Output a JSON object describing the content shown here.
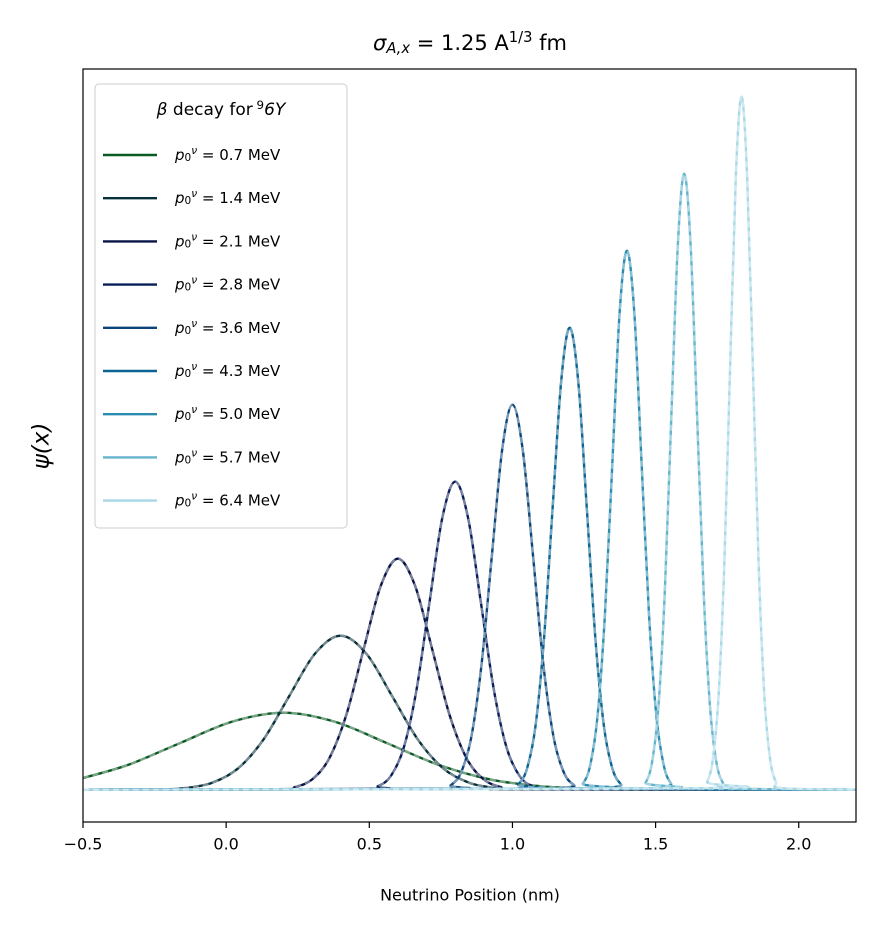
{
  "chart_data": {
    "type": "line",
    "title": "σA,x = 1.25 A1/3 fm",
    "xlabel": "Neutrino Position (nm)",
    "ylabel": "ψ(x)",
    "legend_title": "β decay for 96Y",
    "legend": "upper left",
    "dashed_overlay": true,
    "xlim": [
      -0.5,
      2.2
    ],
    "ylim": [
      -0.42,
      9.36
    ],
    "xticks": [
      {
        "value": -0.5,
        "label": "−0.5"
      },
      {
        "value": 0,
        "label": "0.0"
      },
      {
        "value": 0.5,
        "label": "0.5"
      },
      {
        "value": 1,
        "label": "1.0"
      },
      {
        "value": 1.5,
        "label": "1.5"
      },
      {
        "value": 2,
        "label": "2.0"
      }
    ],
    "series": [
      {
        "name": "p0ν = 0.7 MeV",
        "color": "#0b5a24",
        "x": [
          -0.5,
          -0.34,
          -0.16,
          0.02,
          0.2,
          0.38,
          0.56,
          0.74,
          0.92,
          1.1,
          1.28,
          1.46,
          2.2
        ],
        "values": [
          0.151,
          0.325,
          0.607,
          0.882,
          1,
          0.882,
          0.607,
          0.325,
          0.135,
          0.044,
          0.011,
          0.002,
          0
        ]
      },
      {
        "name": "p0ν = 1.4 MeV",
        "color": "#08303a",
        "x": [
          -0.5,
          -0.23,
          -0.14,
          -0.05,
          0.04,
          0.13,
          0.22,
          0.31,
          0.4,
          0.49,
          0.58,
          0.67,
          0.76,
          0.85,
          0.94,
          1.03,
          2.2
        ],
        "values": [
          0,
          0.0044,
          0.0222,
          0.0879,
          0.2706,
          0.6494,
          1.2131,
          1.765,
          2,
          1.765,
          1.2131,
          0.6494,
          0.2706,
          0.0879,
          0.0222,
          0.0044,
          0
        ]
      },
      {
        "name": "p0ν = 2.1 MeV",
        "color": "#081448",
        "x": [
          -0.5,
          0.18,
          0.24,
          0.3,
          0.36,
          0.42,
          0.48,
          0.54,
          0.6,
          0.66,
          0.72,
          0.78,
          0.84,
          0.9,
          0.96,
          1.02,
          2.2
        ],
        "values": [
          0,
          0.0066,
          0.0333,
          0.1318,
          0.406,
          0.9741,
          1.8196,
          2.6475,
          3,
          2.6475,
          1.8196,
          0.9741,
          0.406,
          0.1318,
          0.0333,
          0.0066,
          0
        ]
      },
      {
        "name": "p0ν = 2.8 MeV",
        "color": "#081d58",
        "x": [
          -0.5,
          0.485,
          0.53,
          0.575,
          0.62,
          0.665,
          0.71,
          0.755,
          0.8,
          0.845,
          0.89,
          0.935,
          0.98,
          1.025,
          1.07,
          1.115,
          2.2
        ],
        "values": [
          0,
          0.0088,
          0.0444,
          0.1758,
          0.5413,
          1.2988,
          2.4261,
          3.53,
          4,
          3.53,
          2.4261,
          1.2988,
          0.5413,
          0.1758,
          0.0444,
          0.0088,
          0
        ]
      },
      {
        "name": "p0ν = 3.6 MeV",
        "color": "#0b4478",
        "x": [
          -0.5,
          0.748,
          0.784,
          0.82,
          0.856,
          0.892,
          0.928,
          0.964,
          1.0,
          1.036,
          1.072,
          1.108,
          1.144,
          1.18,
          1.216,
          1.252,
          2.2
        ],
        "values": [
          0,
          0.011,
          0.0555,
          0.2197,
          0.6766,
          1.6235,
          3.0327,
          4.4125,
          5,
          4.4125,
          3.0327,
          1.6235,
          0.6766,
          0.2197,
          0.0555,
          0.011,
          0
        ]
      },
      {
        "name": "p0ν = 4.3 MeV",
        "color": "#0a6390",
        "x": [
          -0.5,
          0.99,
          1.02,
          1.05,
          1.08,
          1.11,
          1.14,
          1.17,
          1.2,
          1.23,
          1.26,
          1.29,
          1.32,
          1.35,
          1.38,
          1.41,
          2.2
        ],
        "values": [
          0,
          0.0132,
          0.0666,
          0.2637,
          0.812,
          1.9482,
          3.6392,
          5.295,
          6,
          5.295,
          3.6392,
          1.9482,
          0.812,
          0.2637,
          0.0666,
          0.0132,
          0
        ]
      },
      {
        "name": "p0ν = 5.0 MeV",
        "color": "#2b8cb0",
        "x": [
          -0.5,
          1.22,
          1.246,
          1.271,
          1.297,
          1.323,
          1.349,
          1.374,
          1.4,
          1.426,
          1.451,
          1.477,
          1.503,
          1.529,
          1.554,
          1.58,
          2.2
        ],
        "values": [
          0,
          0.0154,
          0.0777,
          0.3076,
          0.9473,
          2.2729,
          4.2457,
          6.1775,
          7,
          6.1775,
          4.2457,
          2.2729,
          0.9473,
          0.3076,
          0.0777,
          0.0154,
          0
        ]
      },
      {
        "name": "p0ν = 5.7 MeV",
        "color": "#64b4cc",
        "x": [
          -0.5,
          1.4425,
          1.465,
          1.4875,
          1.51,
          1.5325,
          1.555,
          1.5775,
          1.6,
          1.6225,
          1.645,
          1.6675,
          1.69,
          1.7125,
          1.735,
          1.7575,
          2.2
        ],
        "values": [
          0,
          0.0176,
          0.0888,
          0.3515,
          1.0826,
          2.5976,
          4.8522,
          7.06,
          8,
          7.06,
          4.8522,
          2.5976,
          1.0826,
          0.3515,
          0.0888,
          0.0176,
          0
        ]
      },
      {
        "name": "p0ν = 6.4 MeV",
        "color": "#a8d8e6",
        "x": [
          -0.5,
          1.66,
          1.68,
          1.7,
          1.72,
          1.74,
          1.76,
          1.78,
          1.8,
          1.82,
          1.84,
          1.86,
          1.88,
          1.9,
          1.92,
          1.94,
          2.2
        ],
        "values": [
          0,
          0.0198,
          0.0999,
          0.3955,
          1.2179,
          2.9223,
          5.4587,
          7.9425,
          9,
          7.9425,
          5.4587,
          2.9223,
          1.2179,
          0.3955,
          0.0999,
          0.0198,
          0
        ]
      }
    ]
  }
}
